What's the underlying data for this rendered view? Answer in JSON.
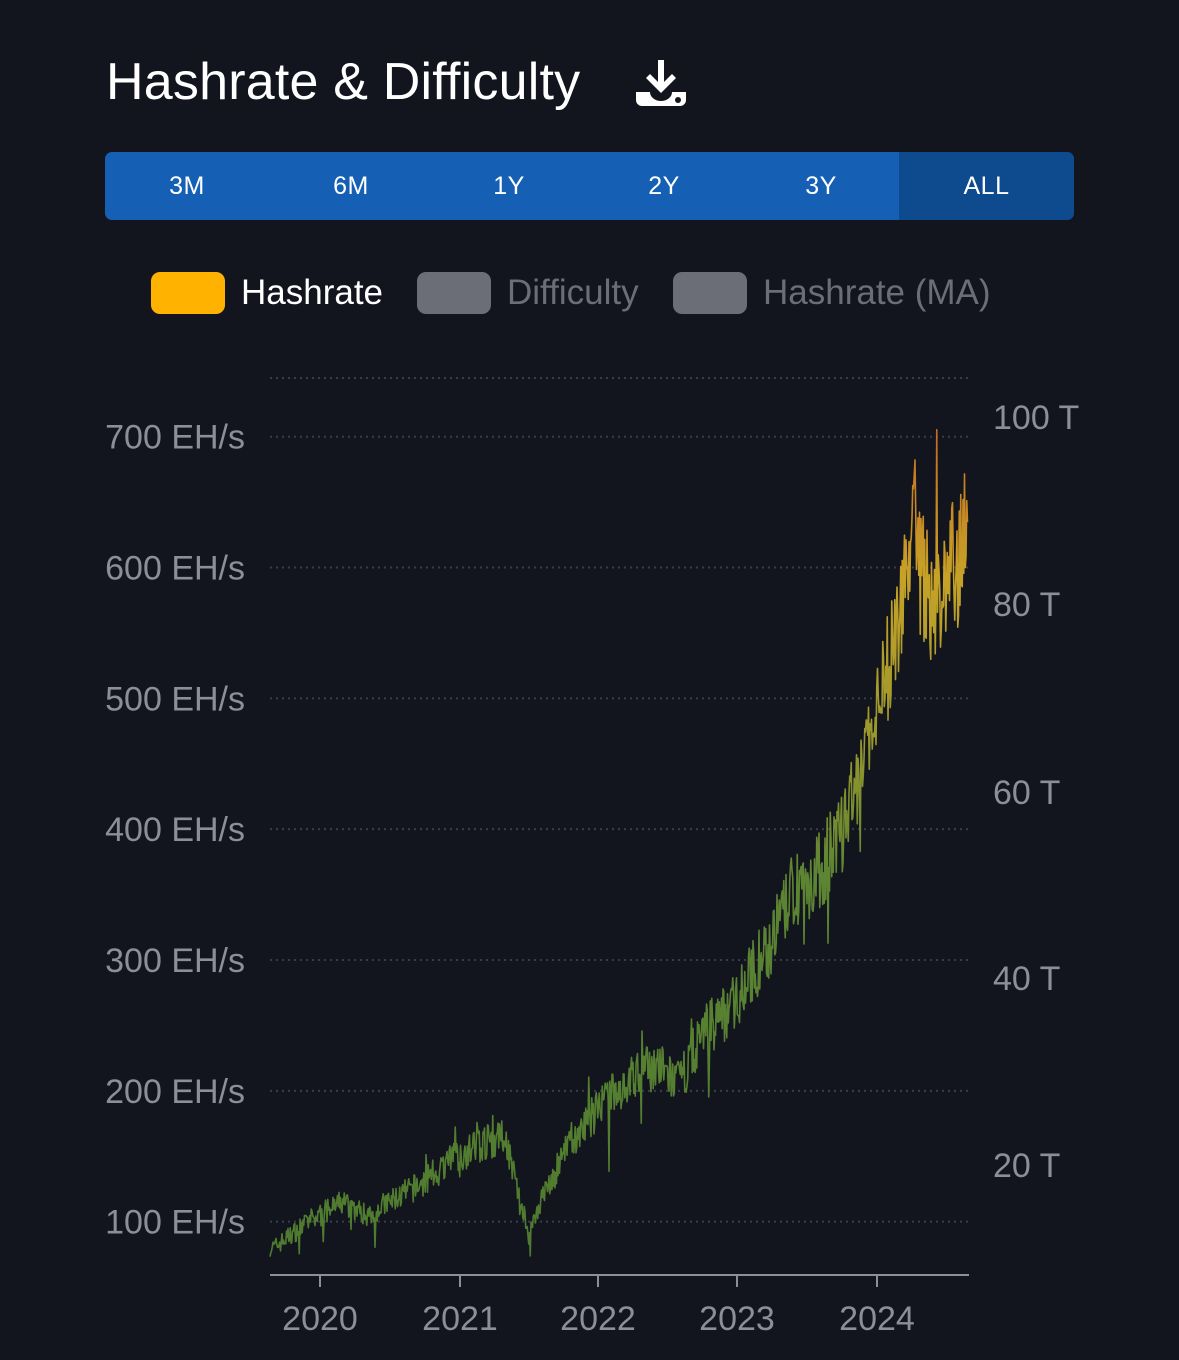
{
  "header": {
    "title": "Hashrate & Difficulty",
    "download_icon": "download-icon"
  },
  "range_tabs": [
    "3M",
    "6M",
    "1Y",
    "2Y",
    "3Y",
    "ALL"
  ],
  "active_tab": "ALL",
  "legend": [
    {
      "label": "Hashrate",
      "color": "#ffb300",
      "active": true
    },
    {
      "label": "Difficulty",
      "color": "#6b6e76",
      "active": false
    },
    {
      "label": "Hashrate (MA)",
      "color": "#6b6e76",
      "active": false
    }
  ],
  "colors": {
    "background": "#12141e",
    "tab_bar": "#1560b5",
    "tab_active": "#0e4a8e",
    "axis_text": "#8c8f98",
    "grid": "#3a3d48",
    "line_low": "#4e7a2e",
    "line_mid": "#c7a227",
    "line_high": "#c7581f"
  },
  "chart_data": {
    "type": "line",
    "x_axis": {
      "ticks": [
        "2020",
        "2021",
        "2022",
        "2023",
        "2024"
      ],
      "range": [
        "2019-09-01",
        "2024-09-15"
      ]
    },
    "y_left": {
      "ticks": [
        "100 EH/s",
        "200 EH/s",
        "300 EH/s",
        "400 EH/s",
        "500 EH/s",
        "600 EH/s",
        "700 EH/s"
      ],
      "range": [
        58,
        745
      ],
      "unit": "EH/s"
    },
    "y_right": {
      "ticks": [
        "20 T",
        "40 T",
        "60 T",
        "80 T",
        "100 T"
      ]
    },
    "grid": "horizontal dotted",
    "series": [
      {
        "name": "Hashrate",
        "x": [
          "2019-09",
          "2019-12",
          "2020-03",
          "2020-05",
          "2020-07",
          "2020-10",
          "2020-12",
          "2021-03",
          "2021-05",
          "2021-07",
          "2021-08",
          "2021-10",
          "2021-12",
          "2022-02",
          "2022-04",
          "2022-06",
          "2022-08",
          "2022-10",
          "2022-12",
          "2023-02",
          "2023-04",
          "2023-06",
          "2023-08",
          "2023-10",
          "2023-12",
          "2024-02",
          "2024-04",
          "2024-06",
          "2024-08",
          "2024-09"
        ],
        "values": [
          80,
          100,
          115,
          105,
          115,
          130,
          145,
          160,
          165,
          90,
          115,
          150,
          175,
          195,
          210,
          220,
          205,
          245,
          260,
          285,
          315,
          355,
          365,
          395,
          450,
          520,
          620,
          570,
          610,
          640
        ]
      }
    ]
  }
}
